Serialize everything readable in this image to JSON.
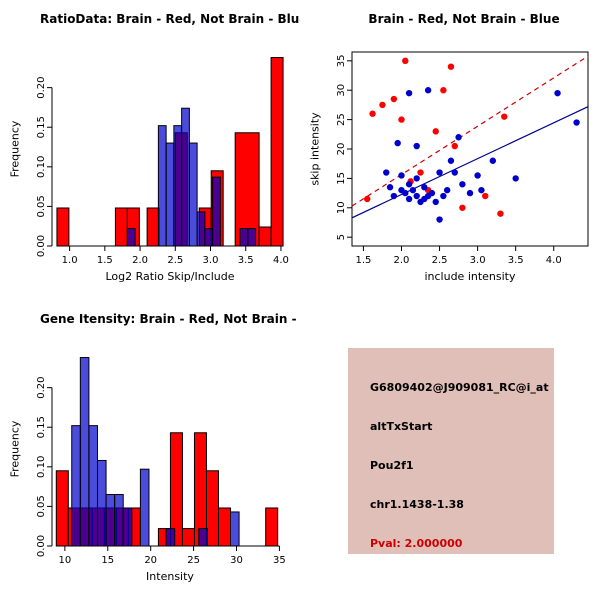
{
  "chart_data": [
    {
      "id": "hist_ratio",
      "type": "bar",
      "title": "RatioData: Brain - Red, Not Brain - Blue",
      "xlabel": "Log2 Ratio Skip/Include",
      "ylabel": "Frequency",
      "xlim": [
        0.75,
        4.1
      ],
      "ylim": [
        0,
        0.245
      ],
      "xticks": [
        1.0,
        1.5,
        2.0,
        2.5,
        3.0,
        3.5,
        4.0
      ],
      "yticks": [
        0.0,
        0.05,
        0.1,
        0.15,
        0.2
      ],
      "xtickdec": 1,
      "ytickdec": 2,
      "grid": false,
      "box": false,
      "series": [
        {
          "name": "Brain",
          "color": "#FF0000",
          "opacity": 1,
          "bins": [
            [
              0.82,
              0.99,
              0.048
            ],
            [
              1.65,
              1.82,
              0.048
            ],
            [
              1.82,
              1.99,
              0.048
            ],
            [
              2.1,
              2.27,
              0.048
            ],
            [
              2.5,
              2.67,
              0.143
            ],
            [
              2.84,
              3.01,
              0.048
            ],
            [
              3.01,
              3.18,
              0.095
            ],
            [
              3.35,
              3.69,
              0.143
            ],
            [
              3.69,
              3.86,
              0.024
            ],
            [
              3.86,
              4.03,
              0.238
            ]
          ]
        },
        {
          "name": "Not Brain",
          "color": "#0000CD",
          "opacity": 0.7,
          "bins": [
            [
              1.82,
              1.93,
              0.022
            ],
            [
              2.26,
              2.37,
              0.152
            ],
            [
              2.37,
              2.48,
              0.13
            ],
            [
              2.48,
              2.59,
              0.152
            ],
            [
              2.59,
              2.7,
              0.174
            ],
            [
              2.7,
              2.81,
              0.13
            ],
            [
              2.81,
              2.92,
              0.043
            ],
            [
              2.92,
              3.03,
              0.022
            ],
            [
              3.03,
              3.14,
              0.087
            ],
            [
              3.42,
              3.53,
              0.022
            ],
            [
              3.53,
              3.64,
              0.022
            ]
          ]
        }
      ]
    },
    {
      "id": "scatter",
      "type": "scatter",
      "title": "Brain - Red, Not Brain - Blue",
      "xlabel": "include intensity",
      "ylabel": "skip intensity",
      "xlim": [
        1.35,
        4.45
      ],
      "ylim": [
        3.5,
        36.5
      ],
      "xticks": [
        1.5,
        2.0,
        2.5,
        3.0,
        3.5,
        4.0
      ],
      "yticks": [
        5,
        10,
        15,
        20,
        25,
        30,
        35
      ],
      "xtickdec": 1,
      "ytickdec": 0,
      "grid": false,
      "box": true,
      "series": [
        {
          "name": "Brain",
          "color": "#FF0000",
          "points": [
            [
              1.55,
              11.5
            ],
            [
              1.62,
              26
            ],
            [
              1.75,
              27.5
            ],
            [
              1.9,
              28.5
            ],
            [
              2.0,
              25
            ],
            [
              2.05,
              35
            ],
            [
              2.12,
              14.5
            ],
            [
              2.25,
              16
            ],
            [
              2.35,
              13
            ],
            [
              2.45,
              23
            ],
            [
              2.55,
              30
            ],
            [
              2.65,
              34
            ],
            [
              2.7,
              20.5
            ],
            [
              2.8,
              10
            ],
            [
              3.1,
              12
            ],
            [
              3.3,
              9
            ],
            [
              3.35,
              25.5
            ]
          ]
        },
        {
          "name": "Not Brain",
          "color": "#0000CD",
          "points": [
            [
              1.8,
              16
            ],
            [
              1.85,
              13.5
            ],
            [
              1.9,
              12
            ],
            [
              1.95,
              21
            ],
            [
              2.0,
              15.5
            ],
            [
              2.0,
              13
            ],
            [
              2.05,
              12.5
            ],
            [
              2.1,
              29.5
            ],
            [
              2.1,
              14
            ],
            [
              2.1,
              11.5
            ],
            [
              2.15,
              13
            ],
            [
              2.2,
              20.5
            ],
            [
              2.2,
              15
            ],
            [
              2.2,
              12
            ],
            [
              2.25,
              11
            ],
            [
              2.3,
              13.5
            ],
            [
              2.3,
              11.5
            ],
            [
              2.35,
              30
            ],
            [
              2.35,
              12
            ],
            [
              2.4,
              12.5
            ],
            [
              2.45,
              11
            ],
            [
              2.5,
              16
            ],
            [
              2.5,
              8
            ],
            [
              2.55,
              12
            ],
            [
              2.6,
              13
            ],
            [
              2.65,
              18
            ],
            [
              2.7,
              16
            ],
            [
              2.75,
              22
            ],
            [
              2.8,
              14
            ],
            [
              2.9,
              12.5
            ],
            [
              3.0,
              15.5
            ],
            [
              3.05,
              13
            ],
            [
              3.2,
              18
            ],
            [
              3.5,
              15
            ],
            [
              4.05,
              29.5
            ],
            [
              4.3,
              24.5
            ]
          ]
        }
      ],
      "lines": [
        {
          "name": "brain-fit-line",
          "color": "#CC0000",
          "dashed": true,
          "x1": 1.35,
          "y1": 10.3,
          "x2": 4.45,
          "y2": 35.8
        },
        {
          "name": "notbrain-fit-line",
          "color": "#00008B",
          "dashed": false,
          "x1": 1.35,
          "y1": 8.3,
          "x2": 4.45,
          "y2": 27.2
        }
      ]
    },
    {
      "id": "hist_gene",
      "type": "bar",
      "title": "Gene Itensity: Brain - Red, Not Brain - Blue",
      "xlabel": "Intensity",
      "ylabel": "Frequency",
      "xlim": [
        8.5,
        36
      ],
      "ylim": [
        0,
        0.245
      ],
      "xticks": [
        10,
        15,
        20,
        25,
        30,
        35
      ],
      "yticks": [
        0.0,
        0.05,
        0.1,
        0.15,
        0.2
      ],
      "xtickdec": 0,
      "ytickdec": 2,
      "grid": false,
      "box": false,
      "series": [
        {
          "name": "Brain",
          "color": "#FF0000",
          "opacity": 1,
          "bins": [
            [
              9.0,
              10.4,
              0.095
            ],
            [
              10.4,
              11.8,
              0.048
            ],
            [
              11.8,
              13.2,
              0.048
            ],
            [
              13.2,
              14.6,
              0.048
            ],
            [
              14.6,
              16.0,
              0.048
            ],
            [
              16.0,
              17.4,
              0.048
            ],
            [
              17.4,
              18.8,
              0.048
            ],
            [
              20.9,
              22.3,
              0.022
            ],
            [
              22.3,
              23.7,
              0.143
            ],
            [
              23.7,
              25.1,
              0.022
            ],
            [
              25.1,
              26.5,
              0.143
            ],
            [
              26.5,
              27.9,
              0.095
            ],
            [
              27.9,
              29.3,
              0.048
            ],
            [
              33.4,
              34.8,
              0.048
            ]
          ]
        },
        {
          "name": "Not Brain",
          "color": "#0000CD",
          "opacity": 0.7,
          "bins": [
            [
              10.8,
              11.8,
              0.152
            ],
            [
              11.8,
              12.8,
              0.238
            ],
            [
              12.8,
              13.8,
              0.152
            ],
            [
              13.8,
              14.8,
              0.108
            ],
            [
              14.8,
              15.8,
              0.065
            ],
            [
              15.8,
              16.8,
              0.065
            ],
            [
              16.8,
              17.8,
              0.048
            ],
            [
              18.8,
              19.8,
              0.097
            ],
            [
              21.8,
              22.8,
              0.022
            ],
            [
              25.6,
              26.6,
              0.022
            ],
            [
              29.3,
              30.3,
              0.043
            ]
          ]
        }
      ]
    }
  ],
  "info_box": {
    "background": "#E0BFB8",
    "lines": [
      {
        "text": "G6809402@J909081_RC@i_at",
        "color": "#000000"
      },
      {
        "text": "altTxStart",
        "color": "#000000"
      },
      {
        "text": "Pou2f1",
        "color": "#000000"
      },
      {
        "text": "chr1.1438-1.38",
        "color": "#000000"
      },
      {
        "text": "Pval: 2.000000",
        "color": "#CC0000"
      }
    ]
  }
}
